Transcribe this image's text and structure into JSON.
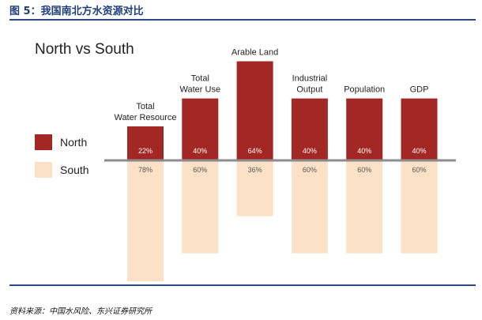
{
  "figure_title": "图 5：我国南北方水资源对比",
  "source_note": "资料来源：中国水风险、东兴证券研究所",
  "colors": {
    "north": "#a32724",
    "south": "#fbe1c6",
    "axis": "#8c8c8c",
    "rule": "#2a4a84",
    "title": "#1f3f7a"
  },
  "chart_data": {
    "type": "bar",
    "title": "North vs South",
    "xlabel": "",
    "ylabel": "",
    "ylim": [
      -100,
      100
    ],
    "grid": false,
    "legend_position": "left",
    "categories": [
      [
        "Total",
        "Water Resource"
      ],
      [
        "Total",
        "Water Use"
      ],
      [
        "Arable Land"
      ],
      [
        "Industrial",
        "Output"
      ],
      [
        "Population"
      ],
      [
        "GDP"
      ]
    ],
    "series": [
      {
        "name": "North",
        "values": [
          22,
          40,
          64,
          40,
          40,
          40
        ],
        "labels": [
          "22%",
          "40%",
          "64%",
          "40%",
          "40%",
          "40%"
        ]
      },
      {
        "name": "South",
        "values": [
          78,
          60,
          36,
          60,
          60,
          60
        ],
        "labels": [
          "78%",
          "60%",
          "36%",
          "60%",
          "60%",
          "60%"
        ]
      }
    ]
  }
}
